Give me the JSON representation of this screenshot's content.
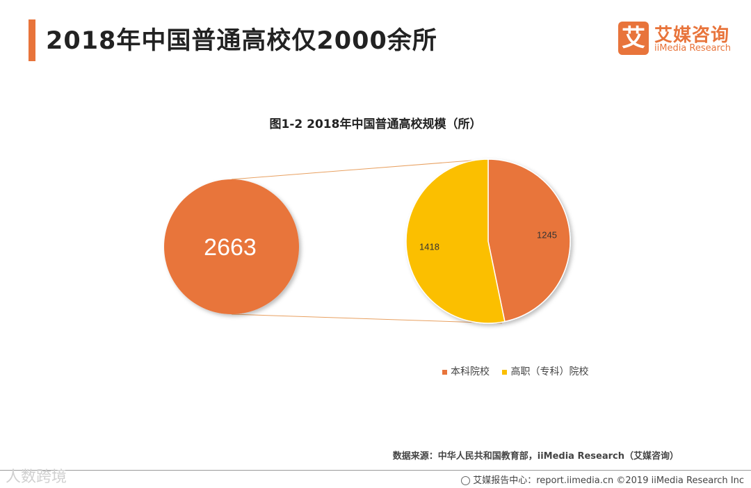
{
  "header": {
    "title": "2018年中国普通高校仅2000余所",
    "logo_mark": "艾",
    "logo_cn": "艾媒咨询",
    "logo_en": "iiMedia Research"
  },
  "colors": {
    "accent": "#e8743b",
    "yellow": "#fbbf00",
    "connector": "#e8a060"
  },
  "chart_data": {
    "type": "pie",
    "title": "图1-2 2018年中国普通高校规模（所）",
    "total": 2663,
    "total_label": "2663",
    "categories": [
      "本科院校",
      "高职（专科）院校"
    ],
    "values": [
      1245,
      1418
    ],
    "value_labels": [
      "1245",
      "1418"
    ],
    "colors": [
      "#e8743b",
      "#fbbf00"
    ],
    "legend_position": "bottom-right"
  },
  "footer": {
    "source": "数据来源：中华人民共和国教育部，iiMedia Research（艾媒咨询）",
    "watermark": "人数跨境",
    "report_center": "艾媒报告中心：report.iimedia.cn  ©2019  iiMedia Research Inc"
  }
}
